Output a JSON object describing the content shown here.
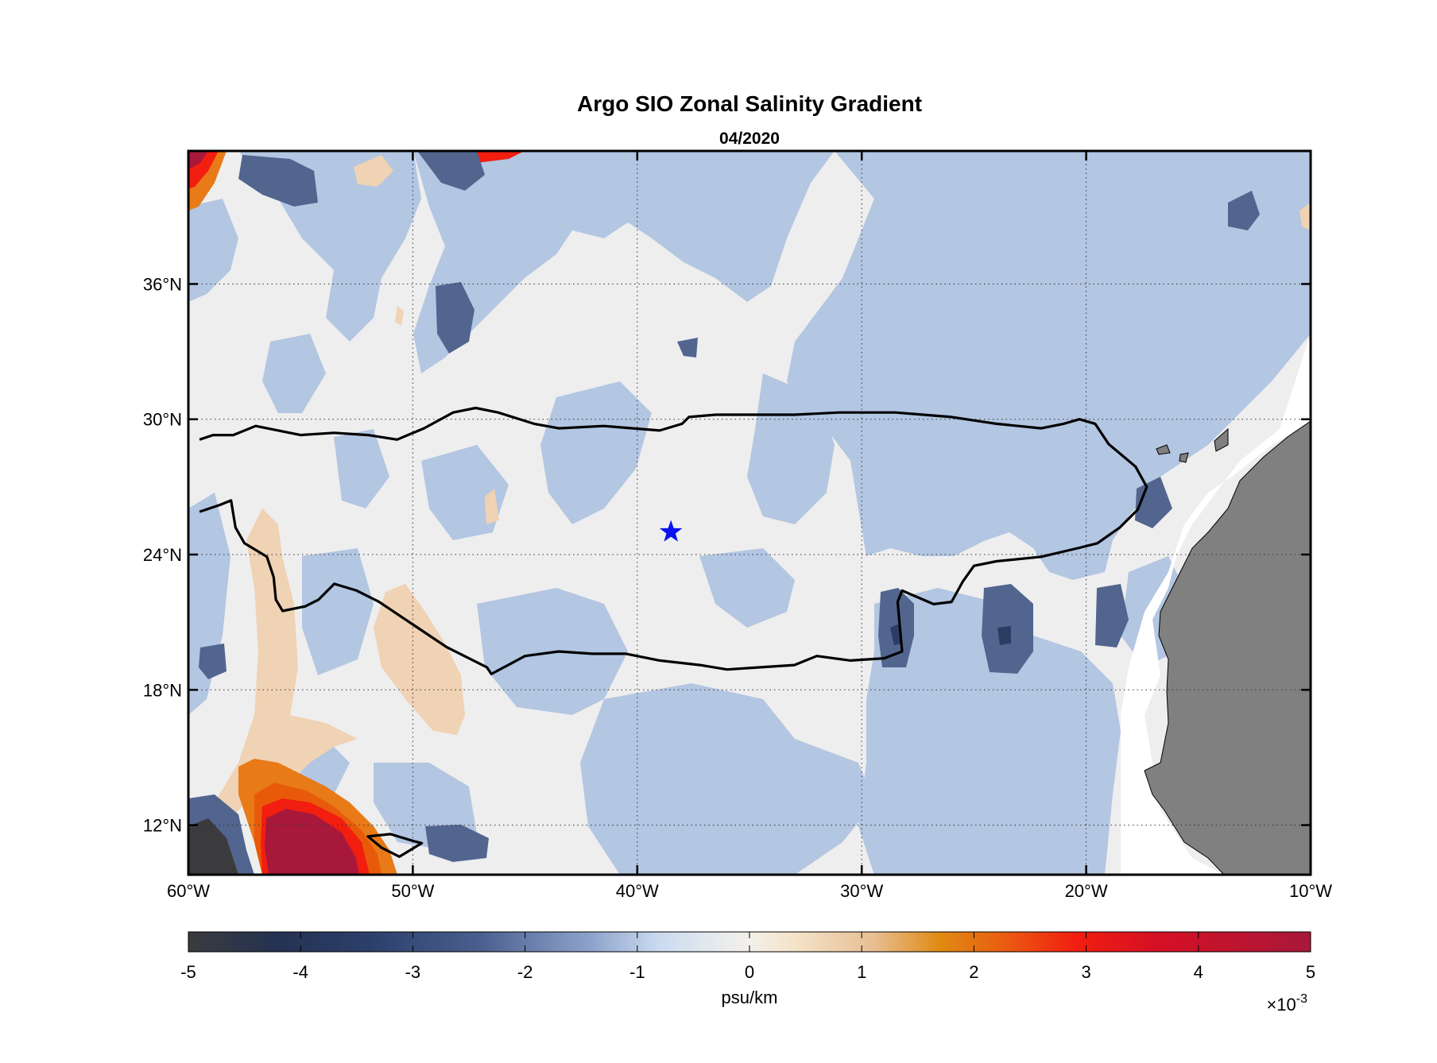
{
  "chart_data": {
    "type": "heatmap",
    "title": "Argo SIO Zonal Salinity Gradient",
    "subtitle": "04/2020",
    "map": {
      "lon_range": [
        -60,
        -10
      ],
      "lat_range": [
        9.8,
        41.9
      ],
      "x_ticks": [
        "60°W",
        "50°W",
        "40°W",
        "30°W",
        "20°W",
        "10°W"
      ],
      "x_tick_values": [
        -60,
        -50,
        -40,
        -30,
        -20,
        -10
      ],
      "y_ticks": [
        "36°N",
        "30°N",
        "24°N",
        "18°N",
        "12°N"
      ],
      "y_tick_values": [
        36,
        30,
        24,
        18,
        12
      ],
      "grid": true,
      "land_color": "#808080",
      "marker": {
        "symbol": "star",
        "lon": -38.5,
        "lat": 25,
        "color": "#0a12f0"
      },
      "contour_line": [
        [
          -59.5,
          29.1
        ],
        [
          -58.9,
          29.3
        ],
        [
          -58.0,
          29.3
        ],
        [
          -57.0,
          29.7
        ],
        [
          -55.0,
          29.3
        ],
        [
          -53.5,
          29.4
        ],
        [
          -52.0,
          29.3
        ],
        [
          -50.7,
          29.1
        ],
        [
          -49.5,
          29.6
        ],
        [
          -48.2,
          30.3
        ],
        [
          -47.2,
          30.5
        ],
        [
          -46.2,
          30.3
        ],
        [
          -44.6,
          29.8
        ],
        [
          -43.5,
          29.6
        ],
        [
          -41.5,
          29.7
        ],
        [
          -39.0,
          29.5
        ],
        [
          -38.0,
          29.8
        ],
        [
          -37.7,
          30.1
        ],
        [
          -36.5,
          30.2
        ],
        [
          -35.0,
          30.2
        ],
        [
          -33.0,
          30.2
        ],
        [
          -31.0,
          30.3
        ],
        [
          -28.5,
          30.3
        ],
        [
          -26.0,
          30.1
        ],
        [
          -24.0,
          29.8
        ],
        [
          -22.0,
          29.6
        ],
        [
          -21.0,
          29.8
        ],
        [
          -20.3,
          30.0
        ],
        [
          -19.6,
          29.8
        ],
        [
          -19.0,
          28.9
        ],
        [
          -17.8,
          27.9
        ],
        [
          -17.3,
          27.0
        ],
        [
          -17.7,
          26.0
        ],
        [
          -18.5,
          25.2
        ],
        [
          -19.5,
          24.5
        ],
        [
          -20.3,
          24.3
        ],
        [
          -22.0,
          23.9
        ],
        [
          -24.0,
          23.7
        ],
        [
          -25.0,
          23.5
        ],
        [
          -25.5,
          22.8
        ],
        [
          -26.0,
          21.9
        ],
        [
          -26.8,
          21.8
        ],
        [
          -27.5,
          22.1
        ],
        [
          -28.2,
          22.4
        ],
        [
          -28.4,
          21.9
        ],
        [
          -28.3,
          20.8
        ],
        [
          -28.2,
          19.7
        ],
        [
          -29.0,
          19.4
        ],
        [
          -30.5,
          19.3
        ],
        [
          -32.0,
          19.5
        ],
        [
          -33.0,
          19.1
        ],
        [
          -34.5,
          19.0
        ],
        [
          -36.0,
          18.9
        ],
        [
          -37.2,
          19.1
        ],
        [
          -39.0,
          19.3
        ],
        [
          -40.5,
          19.6
        ],
        [
          -42.0,
          19.6
        ],
        [
          -43.5,
          19.7
        ],
        [
          -45.0,
          19.5
        ],
        [
          -46.5,
          18.7
        ],
        [
          -46.7,
          19.0
        ],
        [
          -48.5,
          19.9
        ],
        [
          -50.0,
          20.9
        ],
        [
          -51.5,
          21.9
        ],
        [
          -52.5,
          22.4
        ],
        [
          -53.5,
          22.7
        ],
        [
          -54.2,
          22.0
        ],
        [
          -54.8,
          21.7
        ],
        [
          -55.8,
          21.5
        ],
        [
          -56.1,
          22.0
        ],
        [
          -56.2,
          23.0
        ],
        [
          -56.5,
          23.9
        ],
        [
          -57.5,
          24.5
        ],
        [
          -57.9,
          25.2
        ],
        [
          -58.1,
          26.4
        ],
        [
          -58.6,
          26.2
        ],
        [
          -59.5,
          25.9
        ]
      ],
      "contour_loop": [
        [
          -52.0,
          11.5
        ],
        [
          -51.0,
          11.6
        ],
        [
          -50.0,
          11.3
        ],
        [
          -49.6,
          11.2
        ],
        [
          -50.1,
          10.9
        ],
        [
          -50.6,
          10.6
        ],
        [
          -51.4,
          11.0
        ],
        [
          -52.0,
          11.5
        ]
      ]
    },
    "colorbar": {
      "label": "psu/km",
      "ticks": [
        "-5",
        "-4",
        "-3",
        "-2",
        "-1",
        "0",
        "1",
        "2",
        "3",
        "4",
        "5"
      ],
      "range": [
        -5,
        5
      ],
      "multiplier_base": "×10",
      "multiplier_exponent": "-3",
      "colormap": [
        {
          "value": -5,
          "color": "#3b3b3e"
        },
        {
          "value": -4.2,
          "color": "#243252"
        },
        {
          "value": -3.4,
          "color": "#2c3f6b"
        },
        {
          "value": -2.4,
          "color": "#4a5f8f"
        },
        {
          "value": -1.4,
          "color": "#8fa4cc"
        },
        {
          "value": -0.8,
          "color": "#cbdbf0"
        },
        {
          "value": -0.3,
          "color": "#e6eaee"
        },
        {
          "value": 0,
          "color": "#f3f0ea"
        },
        {
          "value": 0.4,
          "color": "#f5e3c9"
        },
        {
          "value": 1.1,
          "color": "#e7bf93"
        },
        {
          "value": 1.7,
          "color": "#e08a12"
        },
        {
          "value": 2.3,
          "color": "#ea5a12"
        },
        {
          "value": 2.9,
          "color": "#f21e10"
        },
        {
          "value": 3.6,
          "color": "#d61024"
        },
        {
          "value": 5,
          "color": "#a8183a"
        }
      ]
    },
    "field_colors": {
      "background": "#eeeeee",
      "light_negative": "#b3c6e2",
      "mid_negative": "#52658f",
      "dark_negative": "#2b3d63",
      "darkest": "#3b3b3e",
      "light_positive": "#f0d2b4",
      "mid_positive": "#e87a18",
      "orange": "#e85a0a",
      "red": "#f21e10",
      "dark_red": "#a8183a"
    }
  }
}
